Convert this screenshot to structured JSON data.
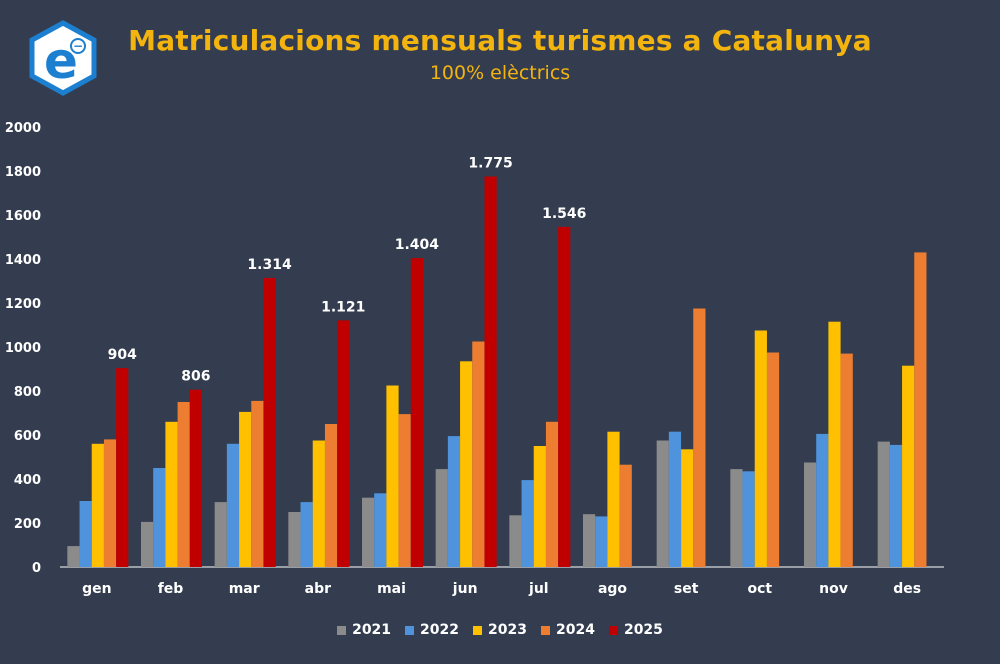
{
  "title": "Matriculacions mensuals turismes a Catalunya",
  "subtitle": "100% elèctrics",
  "logo": {
    "letter": "e",
    "sign": "−"
  },
  "colors": {
    "background": "#333d4f",
    "title": "#f4b40f",
    "text": "#ffffff",
    "axis": "#ffffff",
    "logo_fill": "#ffffff",
    "logo_accent": "#1d7fcf"
  },
  "chart_data": {
    "type": "bar",
    "categories": [
      "gen",
      "feb",
      "mar",
      "abr",
      "mai",
      "jun",
      "jul",
      "ago",
      "set",
      "oct",
      "nov",
      "des"
    ],
    "ylim": [
      0,
      2000
    ],
    "yticks": [
      "0",
      "200",
      "400",
      "600",
      "800",
      "1000",
      "1200",
      "1400",
      "1600",
      "1800",
      "2000"
    ],
    "grid": false,
    "legend_position": "bottom",
    "series": [
      {
        "name": "2021",
        "color": "#8b8b8b",
        "values": [
          95,
          205,
          295,
          250,
          315,
          445,
          235,
          240,
          575,
          445,
          475,
          570
        ]
      },
      {
        "name": "2022",
        "color": "#4f93dc",
        "values": [
          300,
          450,
          560,
          295,
          335,
          595,
          395,
          230,
          615,
          435,
          605,
          555
        ]
      },
      {
        "name": "2023",
        "color": "#ffc000",
        "values": [
          560,
          660,
          705,
          575,
          825,
          935,
          550,
          615,
          535,
          1075,
          1115,
          915
        ]
      },
      {
        "name": "2024",
        "color": "#ed7d31",
        "values": [
          580,
          750,
          755,
          650,
          695,
          1025,
          660,
          465,
          1175,
          975,
          970,
          1430
        ]
      },
      {
        "name": "2025",
        "color": "#c00000",
        "values": [
          904,
          806,
          1314,
          1121,
          1404,
          1775,
          1546,
          null,
          null,
          null,
          null,
          null
        ]
      }
    ],
    "data_labels": {
      "series": "2025",
      "labels": [
        "904",
        "806",
        "1.314",
        "1.121",
        "1.404",
        "1.775",
        "1.546"
      ]
    }
  }
}
